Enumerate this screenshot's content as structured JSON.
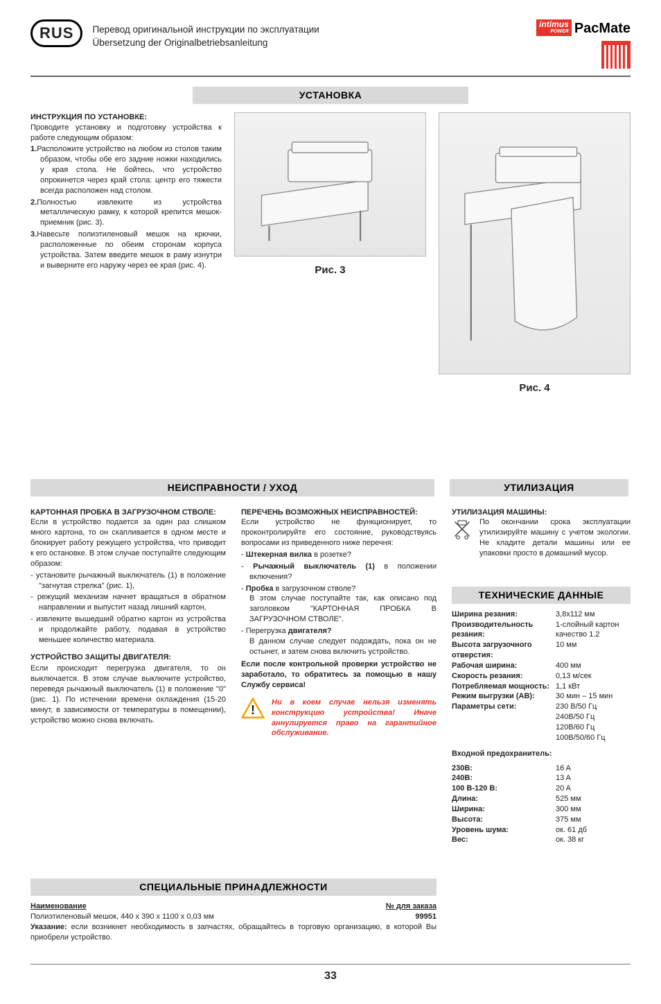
{
  "header": {
    "lang_badge": "RUS",
    "line1": "Перевод оригинальной инструкции по эксплуатации",
    "line2": "Übersetzung der Originalbetriebsanleitung",
    "brand_small": "intimus",
    "brand_power": "POWER",
    "brand_big": "PacMate"
  },
  "install": {
    "title": "УСТАНОВКА",
    "heading": "ИНСТРУКЦИЯ ПО УСТАНОВКЕ:",
    "intro": "Проводите установку и подготовку устройства к работе следующим образом:",
    "step1_num": "1.",
    "step1": "Расположите устройство на любом из столов таким образом, чтобы обе его задние ножки находились у края стола. Не бойтесь, что устройство опрокинется через край стола: центр его тяжести всегда расположен над столом.",
    "step2_num": "2.",
    "step2": "Полностью извлеките из устройства металлическую рамку, к которой крепится мешок-приемник (рис. 3).",
    "step3_num": "3.",
    "step3": "Навесьте полиэтиленовый мешок на крючки, расположенные по обеим сторонам корпуса устройства. Затем введите мешок в раму изнутри и выверните его наружу через ее края (рис. 4).",
    "fig3": "Рис. 3",
    "fig4": "Рис. 4"
  },
  "faults": {
    "bar_left": "НЕИСПРАВНОСТИ / УХОД",
    "h1": "КАРТОННАЯ ПРОБКА В ЗАГРУЗОЧНОМ СТВОЛЕ:",
    "p1": "Если в устройство подается за один раз слишком много картона, то он скапливается в одном месте и блокирует работу режущего устройства, что приводит к его остановке. В этом случае поступайте следующим образом:",
    "b1": "установите рычажный выключатель (1) в положение \"загнутая стрелка\" (рис. 1),",
    "b2": "режущий механизм начнет вращаться в обратном направлении и выпустит назад лишний картон,",
    "b3": "извлеките вышедший обратно картон из устройства и продолжайте работу, подавая в устройство меньшее количество материала.",
    "h2": "УСТРОЙСТВО ЗАЩИТЫ ДВИГАТЕЛЯ:",
    "p2": "Если происходит перегрузка двигателя, то он выключается. В этом случае выключите устройство, переведя рычажный выключатель (1) в положение \"0\" (рис. 1). По истечении времени охлаждения (15-20 минут, в зависимости от температуры в помещении), устройство можно снова включать.",
    "h3": "ПЕРЕЧЕНЬ ВОЗМОЖНЫХ НЕИСПРАВНОСТЕЙ:",
    "p3": "Если устройство не функционирует, то проконтролируйте его состояние, руководствуясь вопросами из приведенного ниже перечня:",
    "c1a": "Штекерная вилка",
    "c1b": " в розетке?",
    "c2a": "Рычажный выключатель (1)",
    "c2b": " в положении включения?",
    "c3a": "Пробка",
    "c3b": " в загрузочном стволе?",
    "c3c": "В этом случае поступайте так, как описано под заголовком \"КАРТОННАЯ ПРОБКА В ЗАГРУЗОЧНОМ СТВОЛЕ\".",
    "c4a": "Перегрузка ",
    "c4b": "двигателя?",
    "c4c": "В данном случае следует подождать, пока он не остынет, и затем снова включить устройство.",
    "p4": "Если после контрольной проверки устройство не заработало, то обратитесь за помощью в нашу Службу сервиса!",
    "warn": "Ни в коем случае нельзя изменять конструкцию устройства! Иначе аннулируется право на гарантийное обслуживание."
  },
  "disposal": {
    "bar": "УТИЛИЗАЦИЯ",
    "h": "УТИЛИЗАЦИЯ МАШИНЫ:",
    "p": "По окончании срока эксплуатации утилизируйте машину с учетом экологии. Не кладите детали машины или ее упаковки просто в домашний мусор."
  },
  "tech": {
    "bar": "ТЕХНИЧЕСКИЕ ДАННЫЕ",
    "rows": [
      {
        "k": "Ширина резания:",
        "v": "3,8x112 мм"
      },
      {
        "k": "Производительность резания:",
        "v": "1-слойный картон качество 1.2"
      },
      {
        "k": "Высота загрузочного отверстия:",
        "v": "10 мм"
      },
      {
        "k": "Рабочая ширина:",
        "v": "400 мм"
      },
      {
        "k": "Скорость резания:",
        "v": "0,13 м/сек"
      },
      {
        "k": "Потребляемая мощность:",
        "v": "1,1 кВт"
      },
      {
        "k": "Режим выгрузки (AB):",
        "v": "30 мин – 15 мин"
      },
      {
        "k": "Параметры сети:",
        "v": "230 В/50 Гц"
      },
      {
        "k": "",
        "v": "240В/50 Гц"
      },
      {
        "k": "",
        "v": "120В/60 Гц"
      },
      {
        "k": "",
        "v": "100В/50/60 Гц"
      }
    ],
    "fuse_h": "Входной предохранитель:",
    "fuse": [
      {
        "k": "230В:",
        "v": "16 A"
      },
      {
        "k": "240В:",
        "v": "13 A"
      },
      {
        "k": "100 В-120 В:",
        "v": "20 A"
      },
      {
        "k": "Длина:",
        "v": "525 мм"
      },
      {
        "k": "Ширина:",
        "v": "300 мм"
      },
      {
        "k": "Высота:",
        "v": "375 мм"
      },
      {
        "k": "Уровень шума:",
        "v": "ок. 61 дб"
      },
      {
        "k": "Вес:",
        "v": "ок. 38 кг"
      }
    ]
  },
  "accessories": {
    "bar": "СПЕЦИАЛЬНЫЕ ПРИНАДЛЕЖНОСТИ",
    "col_name": "Наименование",
    "col_order": "№ для заказа",
    "item": "Полиэтиленовый мешок, 440 x 390 x 1100 x 0,03 мм",
    "order": "99951",
    "note_b": "Указание:",
    "note": " если возникнет необходимость в запчастях, обращайтесь в торговую организацию, в которой Вы приобрели устройство."
  },
  "page": "33"
}
